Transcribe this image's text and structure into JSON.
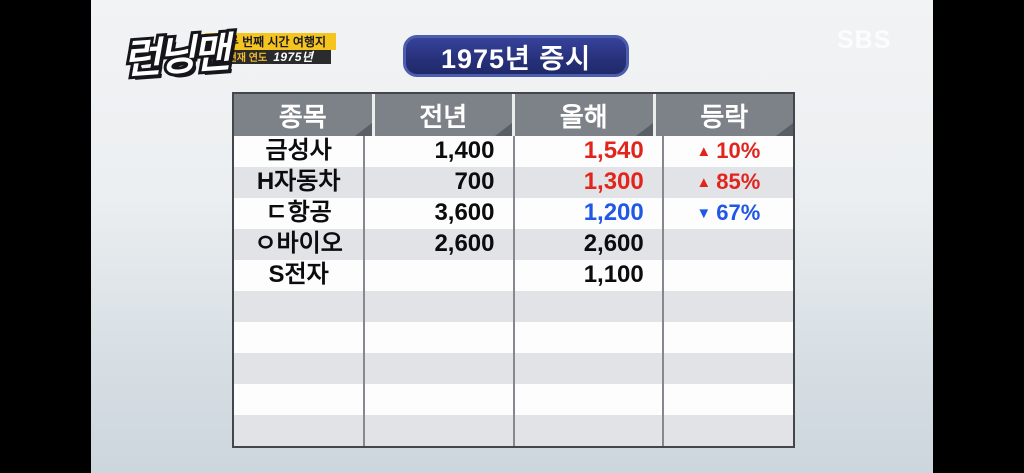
{
  "show_logo": "런닝맨",
  "caption_banner": {
    "arrow_icon": "▶",
    "line1": "두 번째 시간 여행지",
    "line2_label": "현재 연도",
    "line2_value": "1975년"
  },
  "title": "1975년 증시",
  "watermark": "SBS",
  "colors": {
    "rise_red": "#e1251d",
    "fall_blue": "#1f58e4",
    "title_navy": "#28327d",
    "banner_yellow": "#f5c41d",
    "header_gray": "#7d8289",
    "stripe_gray": "#e2e3e7"
  },
  "table": {
    "headers": [
      "종목",
      "전년",
      "올해",
      "등락"
    ],
    "rows": [
      {
        "name": "금성사",
        "prev": "1,400",
        "current": "1,540",
        "current_color": "red",
        "change_arrow": "▲",
        "change_value": "10%",
        "change_color": "red"
      },
      {
        "name": "H자동차",
        "prev": "700",
        "current": "1,300",
        "current_color": "red",
        "change_arrow": "▲",
        "change_value": "85%",
        "change_color": "red"
      },
      {
        "name": "ㄷ항공",
        "prev": "3,600",
        "current": "1,200",
        "current_color": "blue",
        "change_arrow": "▼",
        "change_value": "67%",
        "change_color": "blue"
      },
      {
        "name": "ㅇ바이오",
        "prev": "2,600",
        "current": "2,600",
        "current_color": "black",
        "change_arrow": "",
        "change_value": "",
        "change_color": ""
      },
      {
        "name": "S전자",
        "prev": "",
        "current": "1,100",
        "current_color": "black",
        "change_arrow": "",
        "change_value": "",
        "change_color": ""
      },
      {
        "name": "",
        "prev": "",
        "current": "",
        "current_color": "",
        "change_arrow": "",
        "change_value": "",
        "change_color": ""
      },
      {
        "name": "",
        "prev": "",
        "current": "",
        "current_color": "",
        "change_arrow": "",
        "change_value": "",
        "change_color": ""
      },
      {
        "name": "",
        "prev": "",
        "current": "",
        "current_color": "",
        "change_arrow": "",
        "change_value": "",
        "change_color": ""
      },
      {
        "name": "",
        "prev": "",
        "current": "",
        "current_color": "",
        "change_arrow": "",
        "change_value": "",
        "change_color": ""
      },
      {
        "name": "",
        "prev": "",
        "current": "",
        "current_color": "",
        "change_arrow": "",
        "change_value": "",
        "change_color": ""
      }
    ]
  },
  "chart_data": {
    "type": "table",
    "title": "1975년 증시",
    "columns": [
      "종목",
      "전년",
      "올해",
      "등락"
    ],
    "rows": [
      [
        "금성사",
        "1,400",
        "1,540",
        "▲ 10%"
      ],
      [
        "H자동차",
        "700",
        "1,300",
        "▲ 85%"
      ],
      [
        "ㄷ항공",
        "3,600",
        "1,200",
        "▼ 67%"
      ],
      [
        "ㅇ바이오",
        "2,600",
        "2,600",
        ""
      ],
      [
        "S전자",
        "",
        "1,100",
        ""
      ]
    ]
  }
}
